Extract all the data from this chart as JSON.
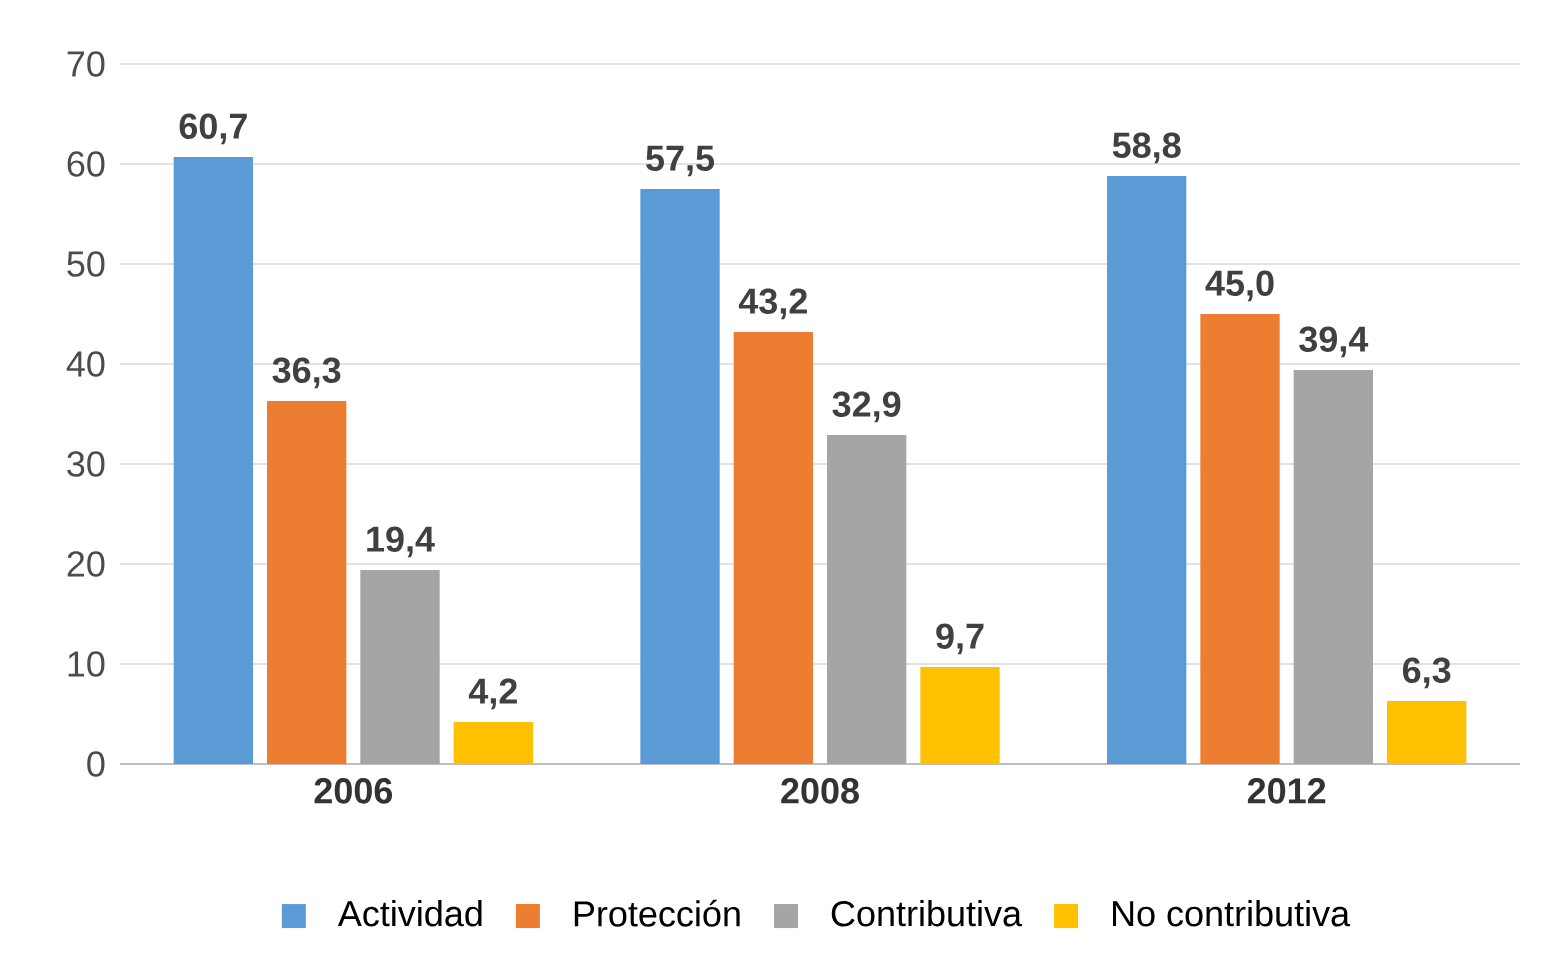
{
  "chart_data": {
    "type": "bar",
    "categories": [
      "2006",
      "2008",
      "2012"
    ],
    "series": [
      {
        "name": "Actividad",
        "color": "#5b9bd5",
        "values": [
          60.7,
          57.5,
          58.8
        ],
        "value_labels": [
          "60,7",
          "57,5",
          "58,8"
        ]
      },
      {
        "name": "Protección",
        "color": "#ed7d31",
        "values": [
          36.3,
          43.2,
          45.0
        ],
        "value_labels": [
          "36,3",
          "43,2",
          "45,0"
        ]
      },
      {
        "name": "Contributiva",
        "color": "#a5a5a5",
        "values": [
          19.4,
          32.9,
          39.4
        ],
        "value_labels": [
          "19,4",
          "32,9",
          "39,4"
        ]
      },
      {
        "name": "No contributiva",
        "color": "#ffc000",
        "values": [
          4.2,
          9.7,
          6.3
        ],
        "value_labels": [
          "4,2",
          "9,7",
          "6,3"
        ]
      }
    ],
    "ylim": [
      0,
      70
    ],
    "yticks": [
      0,
      10,
      20,
      30,
      40,
      50,
      60,
      70
    ],
    "grid": "y",
    "legend": "bottom"
  }
}
